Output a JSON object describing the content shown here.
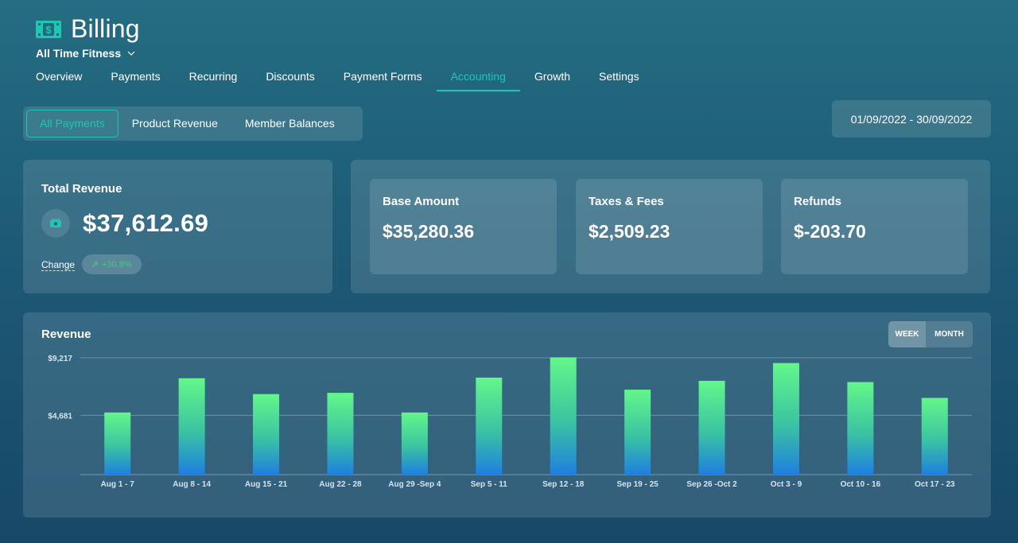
{
  "header": {
    "title": "Billing",
    "icon": "money-bill-icon",
    "org_name": "All Time Fitness"
  },
  "nav": {
    "tabs": [
      {
        "label": "Overview",
        "active": false
      },
      {
        "label": "Payments",
        "active": false
      },
      {
        "label": "Recurring",
        "active": false
      },
      {
        "label": "Discounts",
        "active": false
      },
      {
        "label": "Payment Forms",
        "active": false
      },
      {
        "label": "Accounting",
        "active": true
      },
      {
        "label": "Growth",
        "active": false
      },
      {
        "label": "Settings",
        "active": false
      }
    ]
  },
  "subtabs": [
    {
      "label": "All Payments",
      "active": true
    },
    {
      "label": "Product Revenue",
      "active": false
    },
    {
      "label": "Member Balances",
      "active": false
    }
  ],
  "date_range": "01/09/2022 - 30/09/2022",
  "total_revenue": {
    "label": "Total Revenue",
    "value": "$37,612.69",
    "change_label": "Change",
    "change_value": "+30.8%"
  },
  "stats": [
    {
      "label": "Base Amount",
      "value": "$35,280.36"
    },
    {
      "label": "Taxes & Fees",
      "value": "$2,509.23"
    },
    {
      "label": "Refunds",
      "value": "$-203.70"
    }
  ],
  "revenue_chart": {
    "title": "Revenue",
    "toggle": {
      "week": "WEEK",
      "month": "MONTH",
      "selected": "week"
    }
  },
  "colors": {
    "accent": "#20c7b0",
    "bar_top": "#63f78a",
    "bar_bottom": "#1f7fe0",
    "positive": "#3fd07a"
  },
  "chart_data": {
    "type": "bar",
    "categories": [
      "Aug 1 - 7",
      "Aug 8 - 14",
      "Aug 15 - 21",
      "Aug 22 - 28",
      "Aug 29 -Sep 4",
      "Sep 5 - 11",
      "Sep 12 - 18",
      "Sep 19 - 25",
      "Sep 26 -Oct 2",
      "Oct 3 - 9",
      "Oct 10 - 16",
      "Oct 17 - 23"
    ],
    "values": [
      4900,
      7600,
      6350,
      6450,
      4900,
      7650,
      9250,
      6700,
      7400,
      8800,
      7300,
      6050
    ],
    "yticks": [
      {
        "value": 4681,
        "label": "$4,681"
      },
      {
        "value": 9217,
        "label": "$9,217"
      }
    ],
    "ylim": [
      0,
      9217
    ],
    "grid": true,
    "title": "Revenue",
    "xlabel": "",
    "ylabel": ""
  }
}
